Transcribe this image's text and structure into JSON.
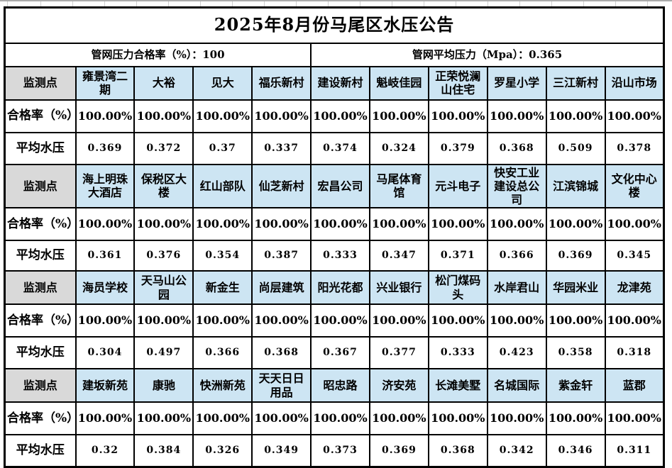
{
  "chart_data": {
    "type": "table",
    "title": "2025年8月份马尾区水压公告",
    "summary_left": "管网压力合格率（%）：100",
    "summary_right": "管网平均压力（Mpa）：0.365",
    "row_labels": {
      "monitor": "监测点",
      "rate": "合格率（%）",
      "pressure": "平均水压"
    },
    "groups": [
      {
        "stations": [
          "雍景湾二期",
          "大裕",
          "见大",
          "福乐新村",
          "建设新村",
          "魁岐佳园",
          "正荣悦澜山住宅",
          "罗星小学",
          "三江新村",
          "沿山市场"
        ],
        "rates": [
          "100.00%",
          "100.00%",
          "100.00%",
          "100.00%",
          "100.00%",
          "100.00%",
          "100.00%",
          "100.00%",
          "100.00%",
          "100.00%"
        ],
        "pressures": [
          "0.369",
          "0.372",
          "0.37",
          "0.337",
          "0.374",
          "0.324",
          "0.379",
          "0.368",
          "0.509",
          "0.378"
        ]
      },
      {
        "stations": [
          "海上明珠大酒店",
          "保税区大楼",
          "红山部队",
          "仙芝新村",
          "宏昌公司",
          "马尾体育馆",
          "元斗电子",
          "快安工业建设总公司",
          "江滨锦城",
          "文化中心楼"
        ],
        "rates": [
          "100.00%",
          "100.00%",
          "100.00%",
          "100.00%",
          "100.00%",
          "100.00%",
          "100.00%",
          "100.00%",
          "100.00%",
          "100.00%"
        ],
        "pressures": [
          "0.361",
          "0.376",
          "0.354",
          "0.387",
          "0.333",
          "0.347",
          "0.371",
          "0.366",
          "0.369",
          "0.345"
        ]
      },
      {
        "stations": [
          "海员学校",
          "天马山公园",
          "新金生",
          "尚层建筑",
          "阳光花都",
          "兴业银行",
          "松门煤码头",
          "水岸君山",
          "华园米业",
          "龙津苑"
        ],
        "rates": [
          "100.00%",
          "100.00%",
          "100.00%",
          "100.00%",
          "100.00%",
          "100.00%",
          "100.00%",
          "100.00%",
          "100.00%",
          "100.00%"
        ],
        "pressures": [
          "0.304",
          "0.497",
          "0.366",
          "0.368",
          "0.367",
          "0.377",
          "0.333",
          "0.423",
          "0.358",
          "0.318"
        ]
      },
      {
        "stations": [
          "建坂新苑",
          "康驰",
          "快洲新苑",
          "天天日日用品",
          "昭忠路",
          "济安苑",
          "长滩美墅",
          "名城国际",
          "紫金轩",
          "蓝郡"
        ],
        "rates": [
          "100.00%",
          "100.00%",
          "100.00%",
          "100.00%",
          "100.00%",
          "100.00%",
          "100.00%",
          "100.00%",
          "100.00%",
          "100.00%"
        ],
        "pressures": [
          "0.32",
          "0.384",
          "0.326",
          "0.349",
          "0.373",
          "0.369",
          "0.368",
          "0.342",
          "0.346",
          "0.311"
        ]
      }
    ],
    "layout": {
      "data_columns": 10,
      "groups_count": 4,
      "legend": "none",
      "grid": "on"
    }
  },
  "colors": {
    "station_header_bg": "#cde5f3",
    "monitor_label_bg": "#d9d9d9",
    "table_border": "#000000",
    "grid_line": "#d0d0d0",
    "grid_top_line": "#ababab"
  }
}
